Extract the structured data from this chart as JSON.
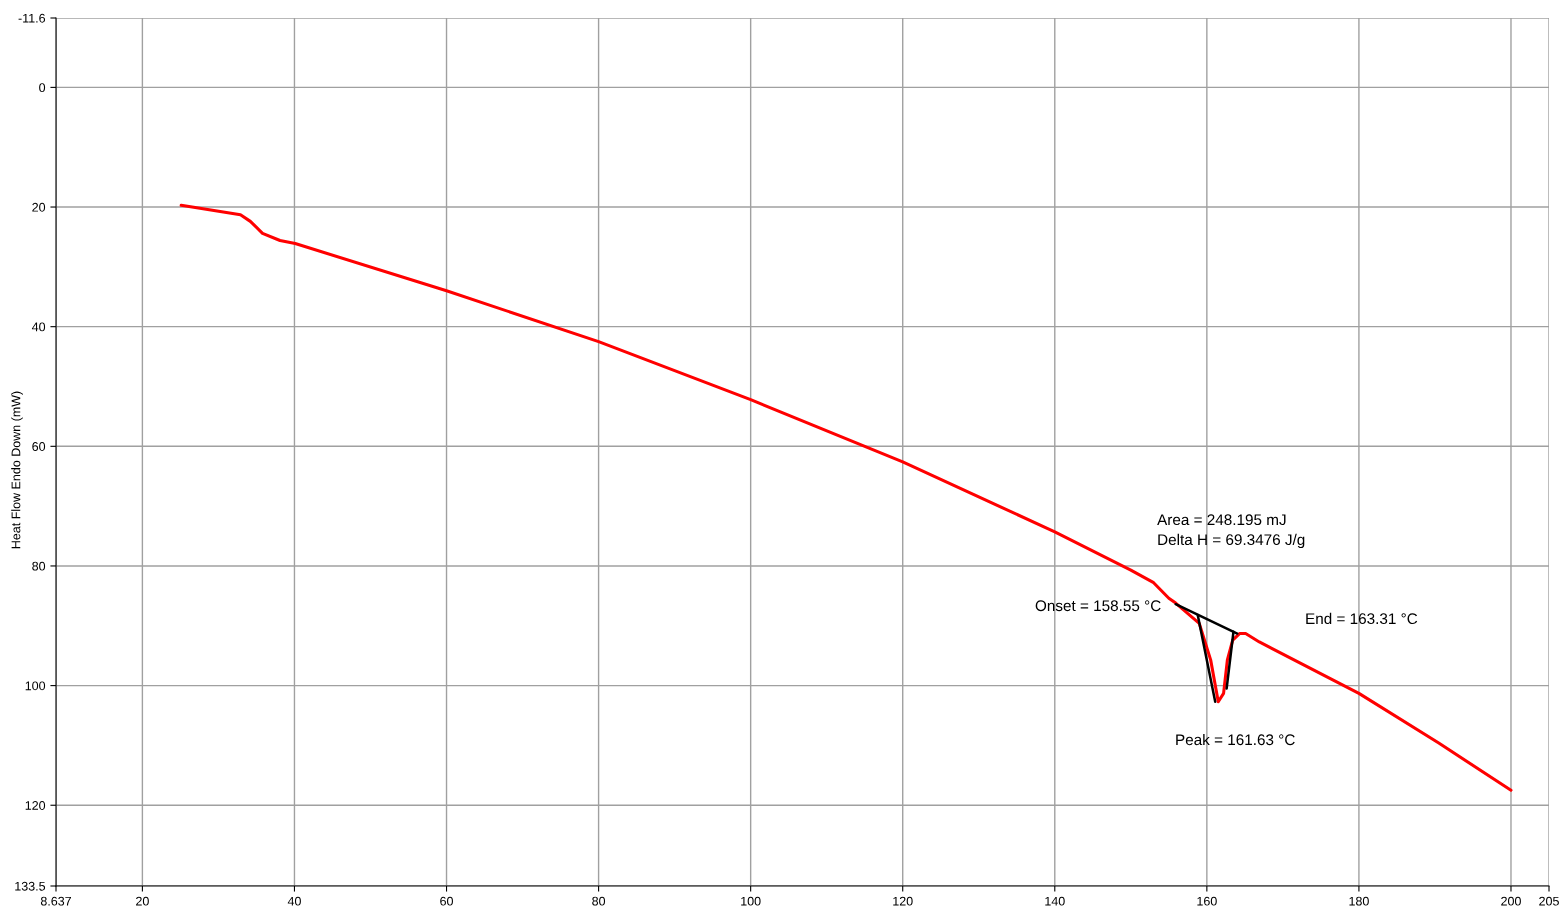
{
  "chart_data": {
    "type": "line",
    "ylabel": "Heat Flow Endo Down (mW)",
    "xlim": [
      8.637,
      205
    ],
    "xticks": [
      8.637,
      20,
      40,
      60,
      80,
      100,
      120,
      140,
      160,
      180,
      200,
      205
    ],
    "ylim": [
      133.5,
      -11.6
    ],
    "yticks": [
      -11.6,
      0,
      20,
      40,
      60,
      80,
      100,
      120,
      133.5
    ],
    "grid": true,
    "marker": "none",
    "line_style": "solid",
    "series": [
      {
        "color": "#ff0000",
        "x": [
          25.1,
          32.9,
          34.2,
          35.8,
          38.1,
          40.1,
          60,
          80,
          100,
          120,
          140,
          150,
          153,
          155,
          155.9,
          159.0,
          160.5,
          161.5,
          162.2,
          162.7,
          163.4,
          164.3,
          165.1,
          166.9,
          180,
          190.5,
          200
        ],
        "values": [
          19.7,
          21.3,
          22.4,
          24.4,
          25.6,
          26.1,
          34.0,
          42.5,
          52.2,
          62.6,
          74.3,
          80.7,
          82.8,
          85.4,
          86.2,
          89.6,
          95.7,
          102.7,
          101.3,
          95.7,
          92.4,
          91.3,
          91.3,
          92.7,
          101.3,
          109.6,
          117.5
        ]
      },
      {
        "color": "#000000",
        "x": [
          155.9,
          164.0
        ],
        "values": [
          86.4,
          91.3
        ]
      },
      {
        "color": "#000000",
        "x": [
          158.8,
          161.1
        ],
        "values": [
          88.2,
          102.7
        ]
      },
      {
        "color": "#000000",
        "x": [
          162.6,
          163.5
        ],
        "values": [
          100.5,
          91.0
        ]
      }
    ],
    "annotations": [
      "Area = 248.195 mJ",
      "Delta H = 69.3476 J/g",
      "Onset = 158.55 °C",
      "Peak = 161.63 °C",
      "End = 163.31 °C"
    ]
  }
}
